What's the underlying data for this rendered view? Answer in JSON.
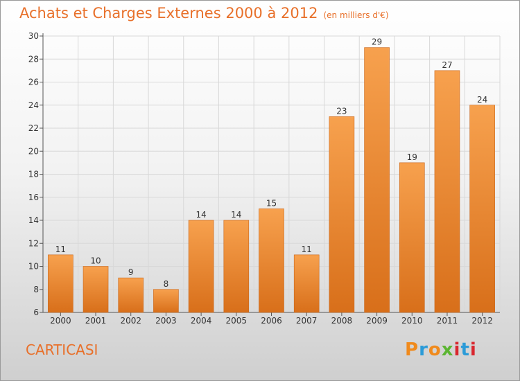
{
  "chart_data": {
    "type": "bar",
    "title": "Achats et Charges Externes 2000 à 2012",
    "unit": "(en milliers d'€)",
    "categories": [
      "2000",
      "2001",
      "2002",
      "2003",
      "2004",
      "2005",
      "2006",
      "2007",
      "2008",
      "2009",
      "2010",
      "2011",
      "2012"
    ],
    "values": [
      11,
      10,
      9,
      8,
      14,
      14,
      15,
      11,
      23,
      29,
      19,
      27,
      24
    ],
    "ylim": [
      6,
      30
    ],
    "yticks": [
      6,
      8,
      10,
      12,
      14,
      16,
      18,
      20,
      22,
      24,
      26,
      28,
      30
    ],
    "grid": true,
    "bar_color": "#f0973f",
    "bar_color_dark": "#d96e1c"
  },
  "town": "CARTICASI",
  "logo": {
    "letters": [
      "P",
      "r",
      "o",
      "x",
      "i",
      "t",
      "i"
    ],
    "colors": [
      "#f08a1c",
      "#2b9bd8",
      "#f08a1c",
      "#5bb531",
      "#d9262e",
      "#2b9bd8",
      "#d9262e"
    ]
  }
}
